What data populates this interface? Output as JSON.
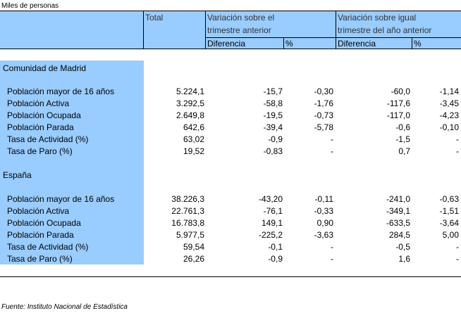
{
  "units": "Miles de personas",
  "headers": {
    "total": "Total",
    "var_trim_line1": "Variación sobre el",
    "var_trim_line2": "trimestre anterior",
    "var_anual_line1": "Variación sobre igual",
    "var_anual_line2": "trimestre del año anterior",
    "diferencia": "Diferencia",
    "pct": "%"
  },
  "sections": [
    {
      "title": "Comunidad de Madrid",
      "rows": [
        {
          "label": "Población mayor de 16 años",
          "total": "5.224,1",
          "dif_trim": "-15,7",
          "pct_trim": "-0,30",
          "dif_anual": "-60,0",
          "pct_anual": "-1,14"
        },
        {
          "label": "Población Activa",
          "total": "3.292,5",
          "dif_trim": "-58,8",
          "pct_trim": "-1,76",
          "dif_anual": "-117,6",
          "pct_anual": "-3,45"
        },
        {
          "label": "Población Ocupada",
          "total": "2.649,8",
          "dif_trim": "-19,5",
          "pct_trim": "-0,73",
          "dif_anual": "-117,0",
          "pct_anual": "-4,23"
        },
        {
          "label": "Población Parada",
          "total": "642,6",
          "dif_trim": "-39,4",
          "pct_trim": "-5,78",
          "dif_anual": "-0,6",
          "pct_anual": "-0,10"
        },
        {
          "label": "Tasa de Actividad (%)",
          "total": "63,02",
          "dif_trim": "-0,9",
          "pct_trim": "-",
          "dif_anual": "-1,5",
          "pct_anual": "-"
        },
        {
          "label": "Tasa de Paro (%)",
          "total": "19,52",
          "dif_trim": "-0,83",
          "pct_trim": "-",
          "dif_anual": "0,7",
          "pct_anual": "-"
        }
      ]
    },
    {
      "title": "España",
      "rows": [
        {
          "label": "Población mayor de 16 años",
          "total": "38.226,3",
          "dif_trim": "-43,20",
          "pct_trim": "-0,11",
          "dif_anual": "-241,0",
          "pct_anual": "-0,63"
        },
        {
          "label": "Población Activa",
          "total": "22.761,3",
          "dif_trim": "-76,1",
          "pct_trim": "-0,33",
          "dif_anual": "-349,1",
          "pct_anual": "-1,51"
        },
        {
          "label": "Población Ocupada",
          "total": "16.783,8",
          "dif_trim": "149,1",
          "pct_trim": "0,90",
          "dif_anual": "-633,5",
          "pct_anual": "-3,64"
        },
        {
          "label": "Población Parada",
          "total": "5.977,5",
          "dif_trim": "-225,2",
          "pct_trim": "-3,63",
          "dif_anual": "284,5",
          "pct_anual": "5,00"
        },
        {
          "label": "Tasa de Actividad (%)",
          "total": "59,54",
          "dif_trim": "-0,1",
          "pct_trim": "-",
          "dif_anual": "-0,5",
          "pct_anual": "-"
        },
        {
          "label": "Tasa de Paro (%)",
          "total": "26,26",
          "dif_trim": "-0,9",
          "pct_trim": "-",
          "dif_anual": "1,6",
          "pct_anual": "-"
        }
      ]
    }
  ],
  "footer": "Fuente: Instituto Nacional de Estadística",
  "colors": {
    "header_bg": "#99ccff",
    "side_bg": "#99ccff"
  }
}
